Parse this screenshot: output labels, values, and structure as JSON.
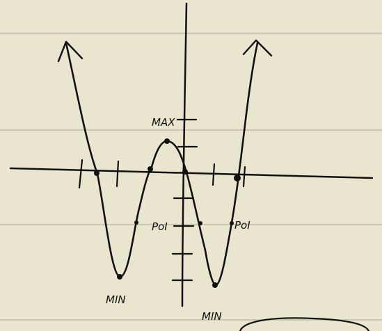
{
  "labels": {
    "max": "MAX",
    "poi_left": "PoI",
    "poi_right": "PoI",
    "min_left": "MIN",
    "min_right": "MIN"
  }
}
